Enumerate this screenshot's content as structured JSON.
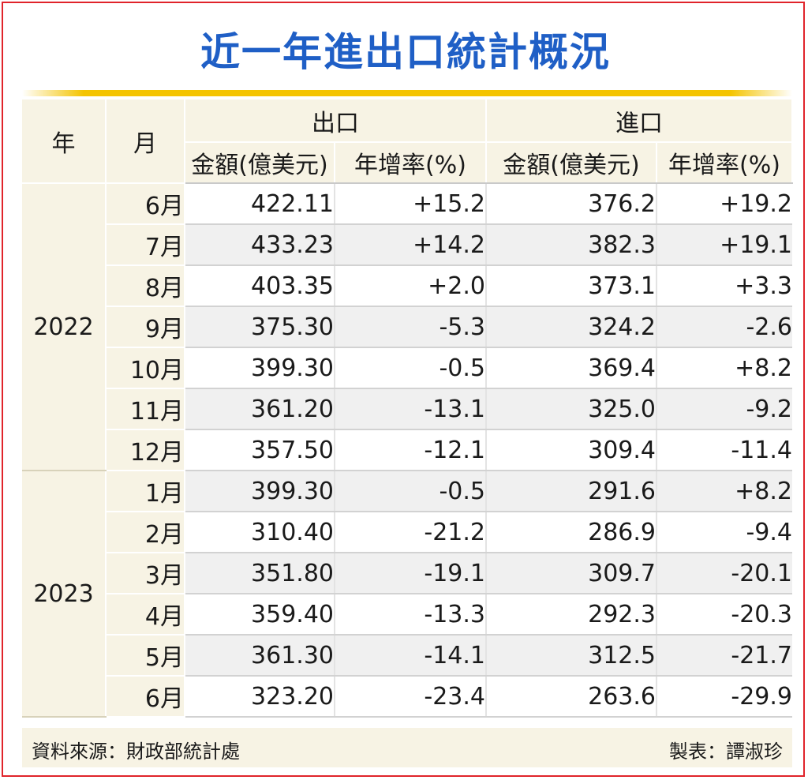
{
  "title": "近一年進出口統計概況",
  "chart_data": {
    "type": "table",
    "title": "近一年進出口統計概況",
    "header": {
      "year": "年",
      "month": "月",
      "export": "出口",
      "import": "進口",
      "amount": "金額(億美元)",
      "growth": "年增率(%)"
    },
    "columns": [
      "年",
      "月",
      "出口 金額(億美元)",
      "出口 年增率(%)",
      "進口 金額(億美元)",
      "進口 年增率(%)"
    ],
    "groups": [
      {
        "year": "2022",
        "rows": [
          {
            "month": "6月",
            "export_amount": "422.11",
            "export_growth": "+15.2",
            "import_amount": "376.2",
            "import_growth": "+19.2"
          },
          {
            "month": "7月",
            "export_amount": "433.23",
            "export_growth": "+14.2",
            "import_amount": "382.3",
            "import_growth": "+19.1"
          },
          {
            "month": "8月",
            "export_amount": "403.35",
            "export_growth": "+2.0",
            "import_amount": "373.1",
            "import_growth": "+3.3"
          },
          {
            "month": "9月",
            "export_amount": "375.30",
            "export_growth": "-5.3",
            "import_amount": "324.2",
            "import_growth": "-2.6"
          },
          {
            "month": "10月",
            "export_amount": "399.30",
            "export_growth": "-0.5",
            "import_amount": "369.4",
            "import_growth": "+8.2"
          },
          {
            "month": "11月",
            "export_amount": "361.20",
            "export_growth": "-13.1",
            "import_amount": "325.0",
            "import_growth": "-9.2"
          },
          {
            "month": "12月",
            "export_amount": "357.50",
            "export_growth": "-12.1",
            "import_amount": "309.4",
            "import_growth": "-11.4"
          }
        ]
      },
      {
        "year": "2023",
        "rows": [
          {
            "month": "1月",
            "export_amount": "399.30",
            "export_growth": "-0.5",
            "import_amount": "291.6",
            "import_growth": "+8.2"
          },
          {
            "month": "2月",
            "export_amount": "310.40",
            "export_growth": "-21.2",
            "import_amount": "286.9",
            "import_growth": "-9.4"
          },
          {
            "month": "3月",
            "export_amount": "351.80",
            "export_growth": "-19.1",
            "import_amount": "309.7",
            "import_growth": "-20.1"
          },
          {
            "month": "4月",
            "export_amount": "359.40",
            "export_growth": "-13.3",
            "import_amount": "292.3",
            "import_growth": "-20.3"
          },
          {
            "month": "5月",
            "export_amount": "361.30",
            "export_growth": "-14.1",
            "import_amount": "312.5",
            "import_growth": "-21.7"
          },
          {
            "month": "6月",
            "export_amount": "323.20",
            "export_growth": "-23.4",
            "import_amount": "263.6",
            "import_growth": "-29.9"
          }
        ]
      }
    ]
  },
  "footer": {
    "source": "資料來源：財政部統計處",
    "maker": "製表：譚淑珍"
  },
  "colors": {
    "title": "#1f5fc6",
    "rule": "#f4c400",
    "header_bg": "#f7f3e4",
    "stripe": "#f0f0f0",
    "border": "#e0242b"
  }
}
